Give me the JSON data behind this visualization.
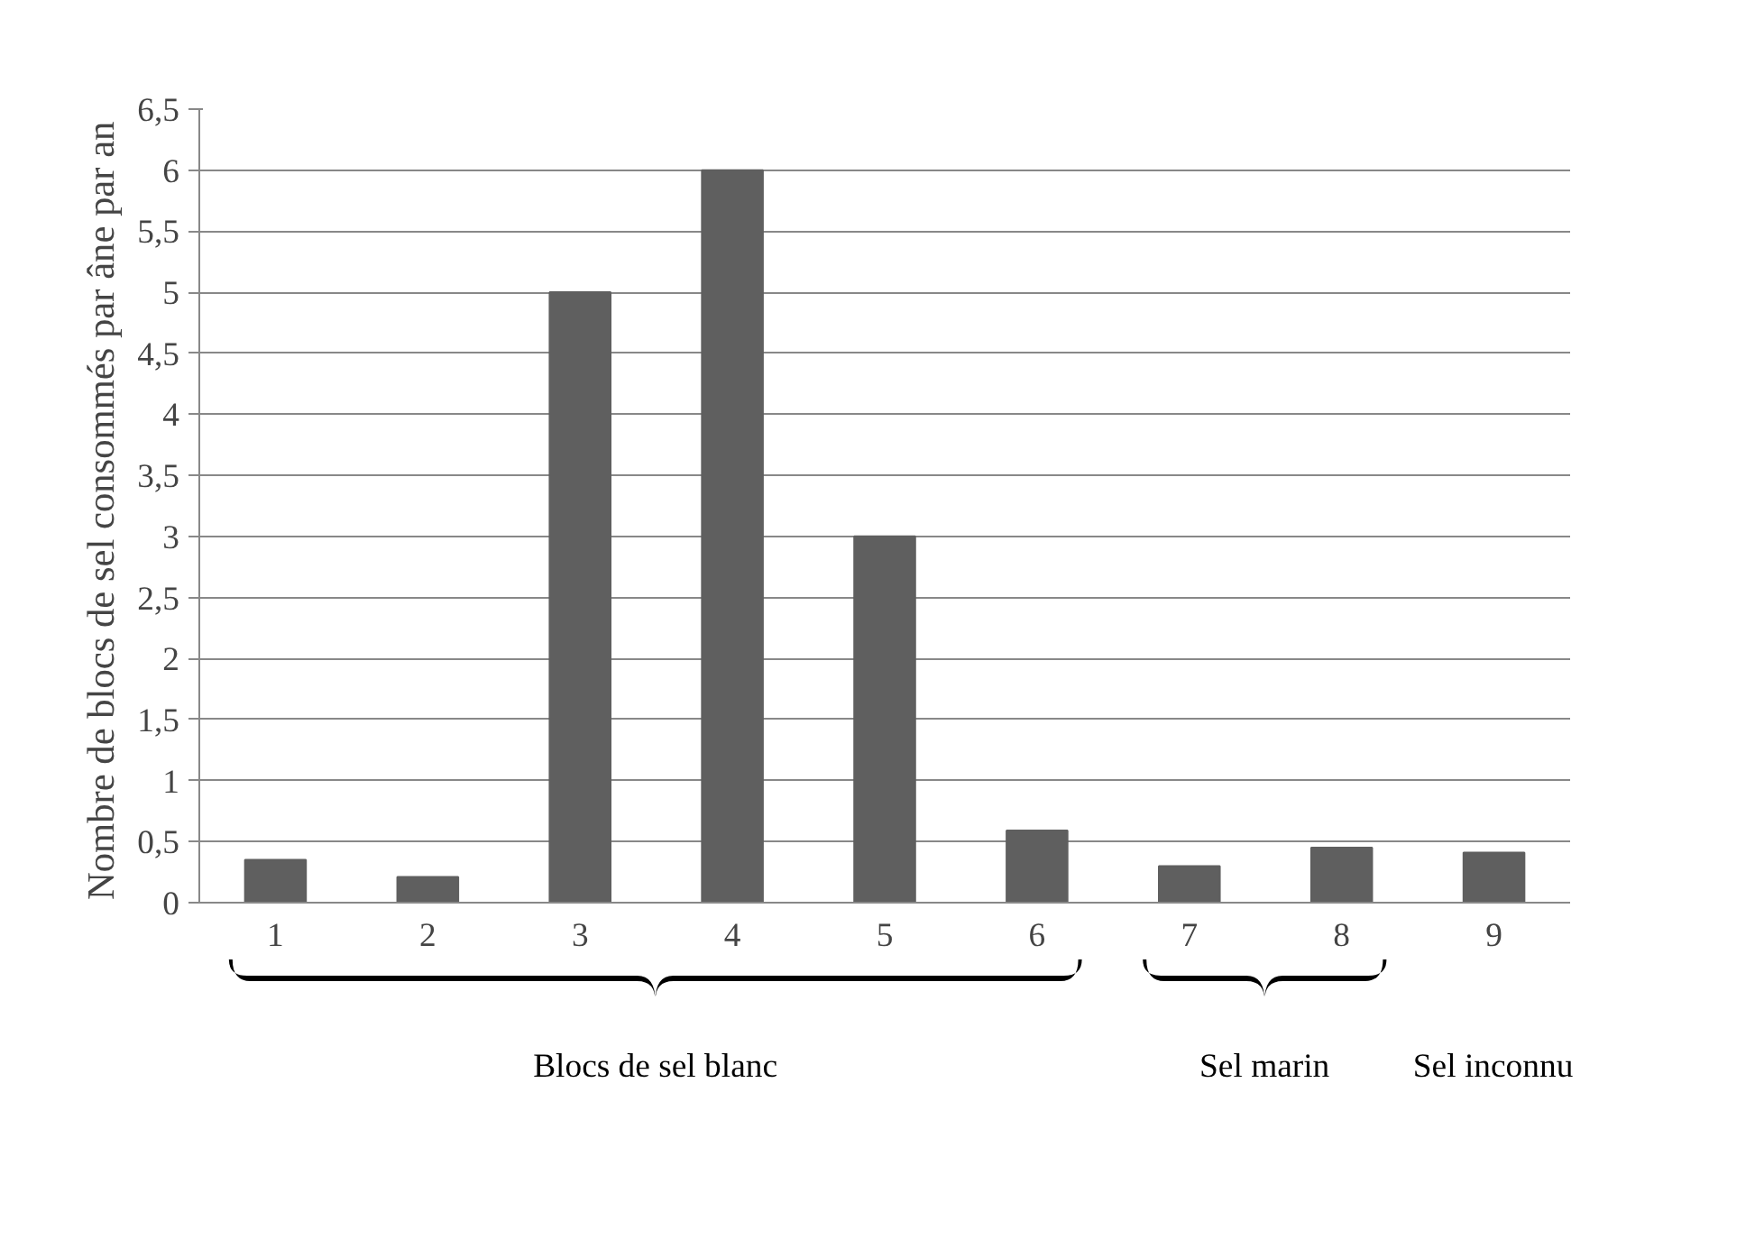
{
  "chart_data": {
    "type": "bar",
    "ylabel": "Nombre de blocs de sel  consommés par âne par an",
    "categories": [
      "1",
      "2",
      "3",
      "4",
      "5",
      "6",
      "7",
      "8",
      "9"
    ],
    "values": [
      0.35,
      0.21,
      5,
      6,
      3,
      0.59,
      0.3,
      0.45,
      0.41
    ],
    "color": "#5f5f5f",
    "ylim": [
      0,
      6.5
    ],
    "yticks": [
      0,
      {
        "value": 0.5,
        "label": "0,5"
      },
      1,
      {
        "value": 1.5,
        "label": "1,5"
      },
      2,
      {
        "value": 2.5,
        "label": "2,5"
      },
      3,
      {
        "value": 3.5,
        "label": "3,5"
      },
      4,
      {
        "value": 4.5,
        "label": "4,5"
      },
      5,
      {
        "value": 5.5,
        "label": "5,5"
      },
      6,
      {
        "value": 6.5,
        "label": "6,5"
      }
    ],
    "grid": "y",
    "legend": false,
    "annotations": [
      "Blocs de sel blanc",
      "Sel marin",
      "Sel inconnu"
    ]
  }
}
